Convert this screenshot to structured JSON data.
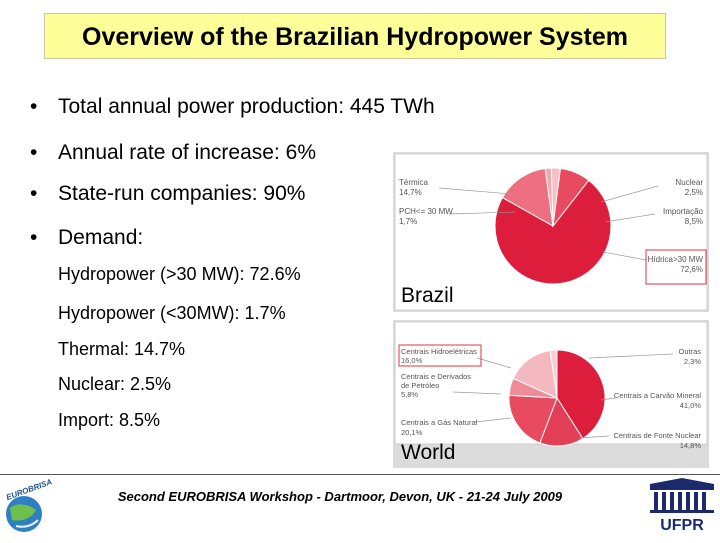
{
  "title": "Overview of the Brazilian Hydropower System",
  "bullets": [
    {
      "symbol": "•",
      "text": "Total annual power production: 445 TWh"
    },
    {
      "symbol": "•",
      "text": "Annual rate of increase: 6%"
    },
    {
      "symbol": "•",
      "text": "State-run companies: 90%"
    },
    {
      "symbol": "•",
      "text": "Demand:"
    }
  ],
  "demand_items": [
    "Hydropower (>30 MW): 72.6%",
    "Hydropower (<30MW): 1.7%",
    "Thermal: 14.7%",
    "Nuclear: 2.5%",
    "Import: 8.5%"
  ],
  "brazil_chart": {
    "caption": "Brazil",
    "labels": {
      "termica": "Térmica",
      "termica_val": "14,7%",
      "pch": "PCH<= 30 MW",
      "pch_val": "1,7%",
      "nuclear": "Nuclear",
      "nuclear_val": "2,5%",
      "importacao": "Importação",
      "importacao_val": "8,5%",
      "hidrica": "Hídrica>30 MW",
      "hidrica_val": "72,6%"
    }
  },
  "world_chart": {
    "caption": "World",
    "labels": {
      "hidro": "Centrais Hidroelétricas",
      "hidro_val": "16,0%",
      "petroleo_1": "Centrais e Derivados",
      "petroleo_2": "de Petróleo",
      "petroleo_val": "5,8%",
      "gas": "Centrais a Gás Natural",
      "gas_val": "20,1%",
      "outras": "Outras",
      "outras_val": "2,3%",
      "carvao": "Centrais a Carvão Mineral",
      "carvao_val": "41,0%",
      "nuclear": "Centrais de Fonte Nuclear",
      "nuclear_val": "14,8%"
    }
  },
  "chart_data": [
    {
      "type": "pie",
      "title": "Brazil",
      "categories": [
        "Hídrica>30 MW",
        "Térmica",
        "PCH<= 30 MW",
        "Nuclear",
        "Importação"
      ],
      "values": [
        72.6,
        14.7,
        1.7,
        2.5,
        8.5
      ],
      "colors": [
        "#dc1e3c",
        "#ee7080",
        "#f2a8b0",
        "#f5c0c8",
        "#e84a60"
      ]
    },
    {
      "type": "pie",
      "title": "World",
      "categories": [
        "Centrais a Carvão Mineral",
        "Centrais de Fonte Nuclear",
        "Centrais a Gás Natural",
        "Centrais e Derivados de Petróleo",
        "Centrais Hidroelétricas",
        "Outras"
      ],
      "values": [
        41.0,
        14.8,
        20.1,
        5.8,
        16.0,
        2.3
      ],
      "colors": [
        "#dc1e3c",
        "#e23e56",
        "#e84a60",
        "#f08c9a",
        "#f5b8c0",
        "#f7d0d6"
      ]
    }
  ],
  "footer": {
    "text": "Second EUROBRISA Workshop - Dartmoor, Devon, UK - 21-24 July 2009",
    "left_logo_text": "EUROBRISA",
    "right_logo_text": "UFPR"
  },
  "colors": {
    "title_bg": "#ffff99",
    "highlight_box": "#e0353f",
    "panel_bg": "#dcdcdc"
  }
}
